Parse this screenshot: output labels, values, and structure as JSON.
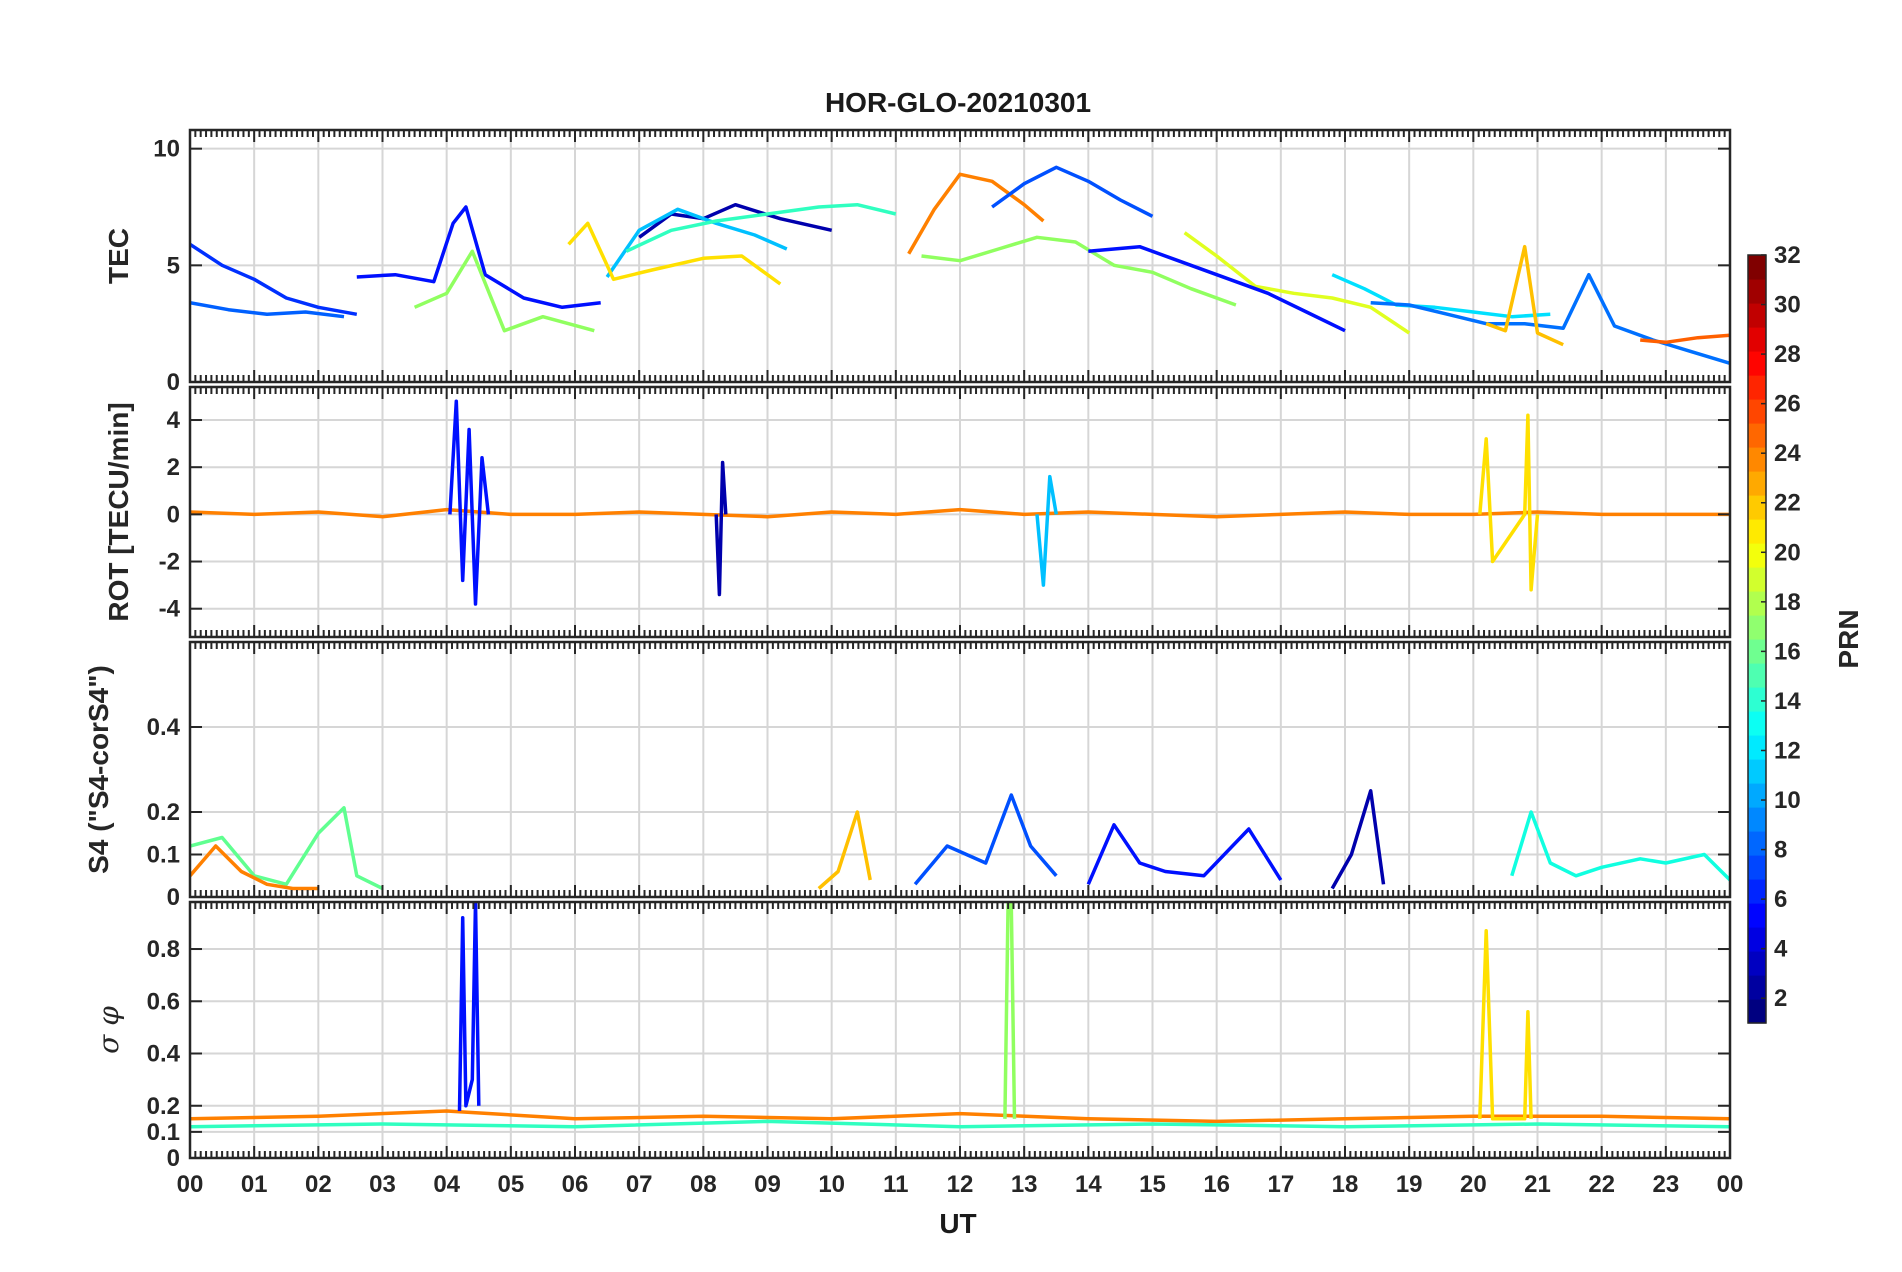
{
  "chart_data": {
    "type": "line",
    "title": "HOR-GLO-20210301",
    "xlabel": "UT",
    "x_tick_labels": [
      "00",
      "01",
      "02",
      "03",
      "04",
      "05",
      "06",
      "07",
      "08",
      "09",
      "10",
      "11",
      "12",
      "13",
      "14",
      "15",
      "16",
      "17",
      "18",
      "19",
      "20",
      "21",
      "22",
      "23",
      "00"
    ],
    "xlim": [
      0,
      24
    ],
    "grid": true,
    "colorbar": {
      "label": "PRN",
      "range": [
        1,
        32
      ],
      "tick_labels": [
        "2",
        "4",
        "6",
        "8",
        "10",
        "12",
        "14",
        "16",
        "18",
        "20",
        "22",
        "24",
        "26",
        "28",
        "30",
        "32"
      ],
      "tick_values": [
        2,
        4,
        6,
        8,
        10,
        12,
        14,
        16,
        18,
        20,
        22,
        24,
        26,
        28,
        30,
        32
      ],
      "colormap": "jet",
      "segments": 32
    },
    "panels": [
      {
        "id": "tec",
        "ylabel": "TEC",
        "ylim": [
          0,
          10.8
        ],
        "yticks": [
          0,
          5,
          10
        ],
        "y_tick_labels": [
          "0",
          "5",
          "10"
        ],
        "series": [
          {
            "prn": 3,
            "color": "#0010ff",
            "x": [
              2.6,
              3.2,
              3.8,
              4.1,
              4.3,
              4.6,
              5.2,
              5.8,
              6.4
            ],
            "y": [
              4.5,
              4.6,
              4.3,
              6.8,
              7.5,
              4.6,
              3.6,
              3.2,
              3.4
            ]
          },
          {
            "prn": 2,
            "color": "#0000ad",
            "x": [
              7.0,
              7.5,
              8.0,
              8.5,
              9.2,
              10.0
            ],
            "y": [
              6.2,
              7.2,
              7.0,
              7.6,
              7.0,
              6.5
            ]
          },
          {
            "prn": 5,
            "color": "#0030ff",
            "x": [
              0.0,
              0.5,
              1.0,
              1.5,
              2.0,
              2.6
            ],
            "y": [
              5.9,
              5.0,
              4.4,
              3.6,
              3.2,
              2.9
            ]
          },
          {
            "prn": 9,
            "color": "#0060ff",
            "x": [
              0.0,
              0.6,
              1.2,
              1.8,
              2.4
            ],
            "y": [
              3.4,
              3.1,
              2.9,
              3.0,
              2.8
            ]
          },
          {
            "prn": 12,
            "color": "#00c0ff",
            "x": [
              6.5,
              7.0,
              7.6,
              8.2,
              8.8,
              9.3
            ],
            "y": [
              4.5,
              6.5,
              7.4,
              6.8,
              6.3,
              5.7
            ]
          },
          {
            "prn": 15,
            "color": "#30ffc0",
            "x": [
              6.8,
              7.5,
              8.2,
              9.0,
              9.8,
              10.4,
              11.0
            ],
            "y": [
              5.6,
              6.5,
              6.9,
              7.2,
              7.5,
              7.6,
              7.2
            ]
          },
          {
            "prn": 23,
            "color": "#ff8000",
            "x": [
              11.2,
              11.6,
              12.0,
              12.5,
              13.0,
              13.3
            ],
            "y": [
              5.5,
              7.4,
              8.9,
              8.6,
              7.6,
              6.9
            ]
          },
          {
            "prn": 7,
            "color": "#0050ff",
            "x": [
              12.5,
              13.0,
              13.5,
              14.0,
              14.5,
              15.0
            ],
            "y": [
              7.5,
              8.5,
              9.2,
              8.6,
              7.8,
              7.1
            ]
          },
          {
            "prn": 17,
            "color": "#90ff60",
            "x": [
              11.4,
              12.0,
              12.6,
              13.2,
              13.8,
              14.4,
              15.0,
              15.6,
              16.3
            ],
            "y": [
              5.4,
              5.2,
              5.7,
              6.2,
              6.0,
              5.0,
              4.7,
              4.0,
              3.3
            ]
          },
          {
            "prn": 20,
            "color": "#e0ff20",
            "x": [
              15.5,
              16.0,
              16.6,
              17.2,
              17.8,
              18.4,
              19.0
            ],
            "y": [
              6.4,
              5.4,
              4.1,
              3.8,
              3.6,
              3.2,
              2.1
            ]
          },
          {
            "prn": 3,
            "color": "#0010ff",
            "x": [
              14.0,
              14.8,
              15.4,
              16.2,
              16.8,
              17.4,
              18.0
            ],
            "y": [
              5.6,
              5.8,
              5.2,
              4.4,
              3.8,
              3.0,
              2.2
            ]
          },
          {
            "prn": 13,
            "color": "#00e0ff",
            "x": [
              17.8,
              18.3,
              18.8,
              19.4,
              20.0,
              20.6,
              21.2
            ],
            "y": [
              4.6,
              4.0,
              3.3,
              3.2,
              3.0,
              2.8,
              2.9
            ]
          },
          {
            "prn": 8,
            "color": "#0070ff",
            "x": [
              18.4,
              19.0,
              19.6,
              20.2,
              20.8,
              21.4,
              21.8,
              22.2,
              22.8,
              23.4,
              24.0
            ],
            "y": [
              3.4,
              3.3,
              2.9,
              2.5,
              2.5,
              2.3,
              4.6,
              2.4,
              1.8,
              1.3,
              0.8
            ]
          },
          {
            "prn": 22,
            "color": "#ffc000",
            "x": [
              20.2,
              20.5,
              20.8,
              21.0,
              21.4
            ],
            "y": [
              2.5,
              2.2,
              5.8,
              2.1,
              1.6
            ]
          },
          {
            "prn": 24,
            "color": "#ff6000",
            "x": [
              22.6,
              23.0,
              23.5,
              24.0
            ],
            "y": [
              1.8,
              1.7,
              1.9,
              2.0
            ]
          },
          {
            "prn": 17,
            "color": "#90ff60",
            "x": [
              3.5,
              4.0,
              4.4,
              4.9,
              5.5,
              6.3
            ],
            "y": [
              3.2,
              3.8,
              5.6,
              2.2,
              2.8,
              2.2
            ]
          },
          {
            "prn": 21,
            "color": "#ffe000",
            "x": [
              5.9,
              6.2,
              6.6,
              7.2,
              8.0,
              8.6,
              9.2
            ],
            "y": [
              5.9,
              6.8,
              4.4,
              4.8,
              5.3,
              5.4,
              4.2
            ]
          }
        ]
      },
      {
        "id": "rot",
        "ylabel": "ROT [TECU/min]",
        "ylim": [
          -5.2,
          5.4
        ],
        "yticks": [
          -4,
          -2,
          0,
          2,
          4
        ],
        "y_tick_labels": [
          "-4",
          "-2",
          "0",
          "2",
          "4"
        ],
        "series": [
          {
            "prn": 23,
            "color": "#ff8000",
            "x": [
              0.0,
              1.0,
              2.0,
              3.0,
              4.0,
              5.0,
              6.0,
              7.0,
              8.0,
              9.0,
              10.0,
              11.0,
              12.0,
              13.0,
              14.0,
              15.0,
              16.0,
              17.0,
              18.0,
              19.0,
              20.0,
              21.0,
              22.0,
              23.0,
              24.0
            ],
            "y": [
              0.1,
              0.0,
              0.1,
              -0.1,
              0.2,
              0.0,
              0.0,
              0.1,
              0.0,
              -0.1,
              0.1,
              0.0,
              0.2,
              0.0,
              0.1,
              0.0,
              -0.1,
              0.0,
              0.1,
              0.0,
              0.0,
              0.1,
              0.0,
              0.0,
              0.0
            ]
          },
          {
            "prn": 3,
            "color": "#0010ff",
            "x": [
              4.05,
              4.15,
              4.25,
              4.35,
              4.45,
              4.55,
              4.65
            ],
            "y": [
              0.0,
              4.8,
              -2.8,
              3.6,
              -3.8,
              2.4,
              0.0
            ]
          },
          {
            "prn": 12,
            "color": "#00c0ff",
            "x": [
              13.2,
              13.3,
              13.4,
              13.5
            ],
            "y": [
              0.0,
              -3.0,
              1.6,
              0.0
            ]
          },
          {
            "prn": 21,
            "color": "#ffe000",
            "x": [
              20.1,
              20.2,
              20.3,
              20.8,
              20.85,
              20.9,
              21.0
            ],
            "y": [
              0.0,
              3.2,
              -2.0,
              0.0,
              4.2,
              -3.2,
              0.0
            ]
          },
          {
            "prn": 2,
            "color": "#0000ad",
            "x": [
              8.2,
              8.25,
              8.3,
              8.35
            ],
            "y": [
              0.0,
              -3.4,
              2.2,
              0.0
            ]
          }
        ]
      },
      {
        "id": "s4",
        "ylabel": "S4 (\"S4-corS4\")",
        "ylim": [
          0,
          0.6
        ],
        "yticks": [
          0,
          0.1,
          0.2,
          0.4
        ],
        "y_tick_labels": [
          "0",
          "0.1",
          "0.2",
          "0.4"
        ],
        "series": [
          {
            "prn": 16,
            "color": "#60ff90",
            "x": [
              0.0,
              0.5,
              1.0,
              1.5,
              2.0,
              2.4,
              2.6,
              3.0
            ],
            "y": [
              0.12,
              0.14,
              0.05,
              0.03,
              0.15,
              0.21,
              0.05,
              0.02
            ]
          },
          {
            "prn": 23,
            "color": "#ff8000",
            "x": [
              0.0,
              0.4,
              0.8,
              1.2,
              1.6,
              2.0
            ],
            "y": [
              0.05,
              0.12,
              0.06,
              0.03,
              0.02,
              0.02
            ]
          },
          {
            "prn": 7,
            "color": "#0050ff",
            "x": [
              11.3,
              11.8,
              12.4,
              12.8,
              13.1,
              13.5
            ],
            "y": [
              0.03,
              0.12,
              0.08,
              0.24,
              0.12,
              0.05
            ]
          },
          {
            "prn": 3,
            "color": "#0010ff",
            "x": [
              14.0,
              14.4,
              14.8,
              15.2,
              15.8,
              16.5,
              17.0
            ],
            "y": [
              0.03,
              0.17,
              0.08,
              0.06,
              0.05,
              0.16,
              0.04
            ]
          },
          {
            "prn": 2,
            "color": "#0000ad",
            "x": [
              17.8,
              18.1,
              18.4,
              18.6
            ],
            "y": [
              0.02,
              0.1,
              0.25,
              0.03
            ]
          },
          {
            "prn": 14,
            "color": "#10ffe0",
            "x": [
              20.6,
              20.9,
              21.2,
              21.6,
              22.0,
              22.6,
              23.0,
              23.6,
              24.0
            ],
            "y": [
              0.05,
              0.2,
              0.08,
              0.05,
              0.07,
              0.09,
              0.08,
              0.1,
              0.04
            ]
          },
          {
            "prn": 22,
            "color": "#ffc000",
            "x": [
              9.8,
              10.1,
              10.4,
              10.6
            ],
            "y": [
              0.02,
              0.06,
              0.2,
              0.04
            ]
          }
        ]
      },
      {
        "id": "sigma",
        "ylabel": "σ φ",
        "ylim": [
          0,
          0.98
        ],
        "yticks": [
          0,
          0.1,
          0.2,
          0.4,
          0.6,
          0.8
        ],
        "y_tick_labels": [
          "0",
          "0.1",
          "0.2",
          "0.4",
          "0.6",
          "0.8"
        ],
        "series": [
          {
            "prn": 23,
            "color": "#ff8000",
            "x": [
              0.0,
              2.0,
              4.0,
              6.0,
              8.0,
              10.0,
              12.0,
              14.0,
              16.0,
              18.0,
              20.0,
              22.0,
              24.0
            ],
            "y": [
              0.15,
              0.16,
              0.18,
              0.15,
              0.16,
              0.15,
              0.17,
              0.15,
              0.14,
              0.15,
              0.16,
              0.16,
              0.15
            ]
          },
          {
            "prn": 3,
            "color": "#0010ff",
            "x": [
              4.2,
              4.25,
              4.3,
              4.4,
              4.45,
              4.5
            ],
            "y": [
              0.18,
              0.92,
              0.2,
              0.3,
              0.98,
              0.2
            ]
          },
          {
            "prn": 17,
            "color": "#90ff60",
            "x": [
              12.7,
              12.75,
              12.8,
              12.85
            ],
            "y": [
              0.15,
              0.98,
              0.97,
              0.15
            ]
          },
          {
            "prn": 21,
            "color": "#ffe000",
            "x": [
              20.1,
              20.2,
              20.3,
              20.8,
              20.85,
              20.9
            ],
            "y": [
              0.15,
              0.87,
              0.15,
              0.15,
              0.56,
              0.15
            ]
          },
          {
            "prn": 15,
            "color": "#30ffc0",
            "x": [
              0.0,
              3.0,
              6.0,
              9.0,
              12.0,
              15.0,
              18.0,
              21.0,
              24.0
            ],
            "y": [
              0.12,
              0.13,
              0.12,
              0.14,
              0.12,
              0.13,
              0.12,
              0.13,
              0.12
            ]
          }
        ]
      }
    ]
  }
}
